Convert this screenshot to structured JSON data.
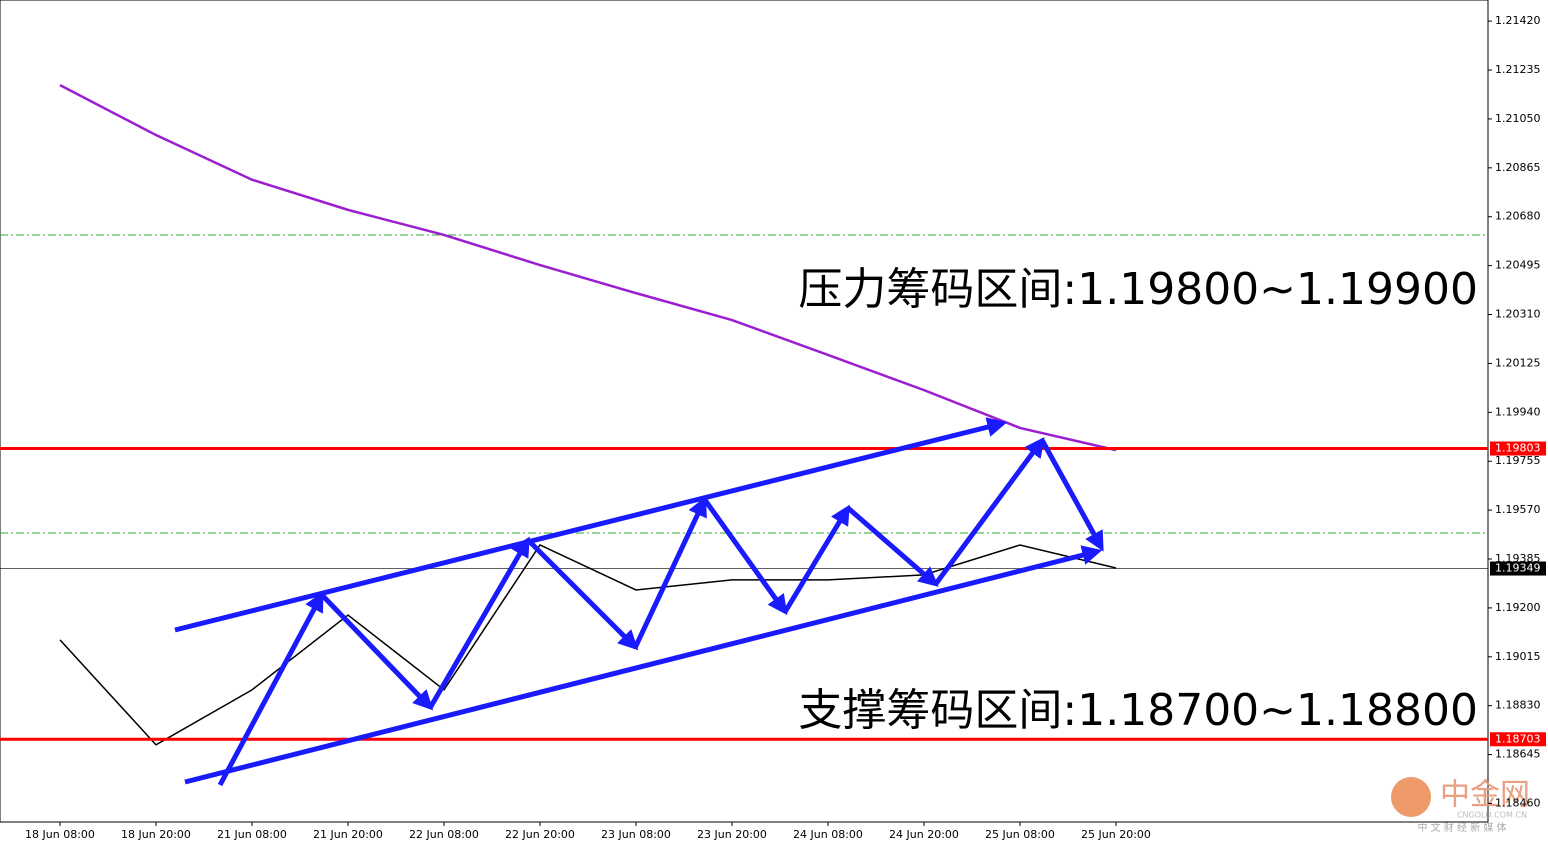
{
  "chart_data": {
    "type": "line",
    "categories": [
      "18 Jun 08:00",
      "18 Jun 20:00",
      "21 Jun 08:00",
      "21 Jun 20:00",
      "22 Jun 08:00",
      "22 Jun 20:00",
      "23 Jun 08:00",
      "23 Jun 20:00",
      "24 Jun 08:00",
      "24 Jun 20:00",
      "25 Jun 08:00",
      "25 Jun 20:00"
    ],
    "series": [
      {
        "color": "#9b1fd0",
        "values": [
          1.21178,
          1.20989,
          1.2082,
          1.20706,
          1.20611,
          1.20497,
          1.20391,
          1.20289,
          1.20157,
          1.20024,
          1.19881,
          1.19797
        ]
      },
      {
        "color": "#000000",
        "values": [
          1.19079,
          1.18682,
          1.1889,
          1.19173,
          1.1889,
          1.19438,
          1.19268,
          1.19306,
          1.19306,
          1.19325,
          1.19438,
          1.19351
        ]
      }
    ],
    "ylim": [
      1.1839,
      1.215
    ],
    "yticks": [
      {
        "value": 1.2142,
        "label": "1.21420"
      },
      1.21235,
      {
        "value": 1.2105,
        "label": "1.21050"
      },
      1.20865,
      {
        "value": 1.2068,
        "label": "1.20680"
      },
      1.20495,
      {
        "value": 1.2031,
        "label": "1.20310"
      },
      1.20125,
      {
        "value": 1.1994,
        "label": "1.19940"
      },
      1.19755,
      {
        "value": 1.1957,
        "label": "1.19570"
      },
      1.19385,
      {
        "value": 1.192,
        "label": "1.19200"
      },
      {
        "value": 1.19015,
        "label": "1.19015"
      },
      {
        "value": 1.1883,
        "label": "1.18830"
      },
      1.18645,
      {
        "value": 1.1846,
        "label": "1.18460"
      }
    ],
    "levels": [
      {
        "value": 1.19803,
        "color": "#ff0000"
      },
      {
        "value": 1.19349,
        "color": "#000000"
      },
      {
        "value": 1.18703,
        "color": "#ff0000"
      }
    ],
    "annotations": [
      "压力筹码区间:1.19800~1.19900",
      "支撑筹码区间:1.18700~1.18800"
    ],
    "watermark": {
      "name": "中金网",
      "site": "CNGOLD.COM.CN",
      "slogan": "中 文 财 经 新 媒 体"
    }
  }
}
